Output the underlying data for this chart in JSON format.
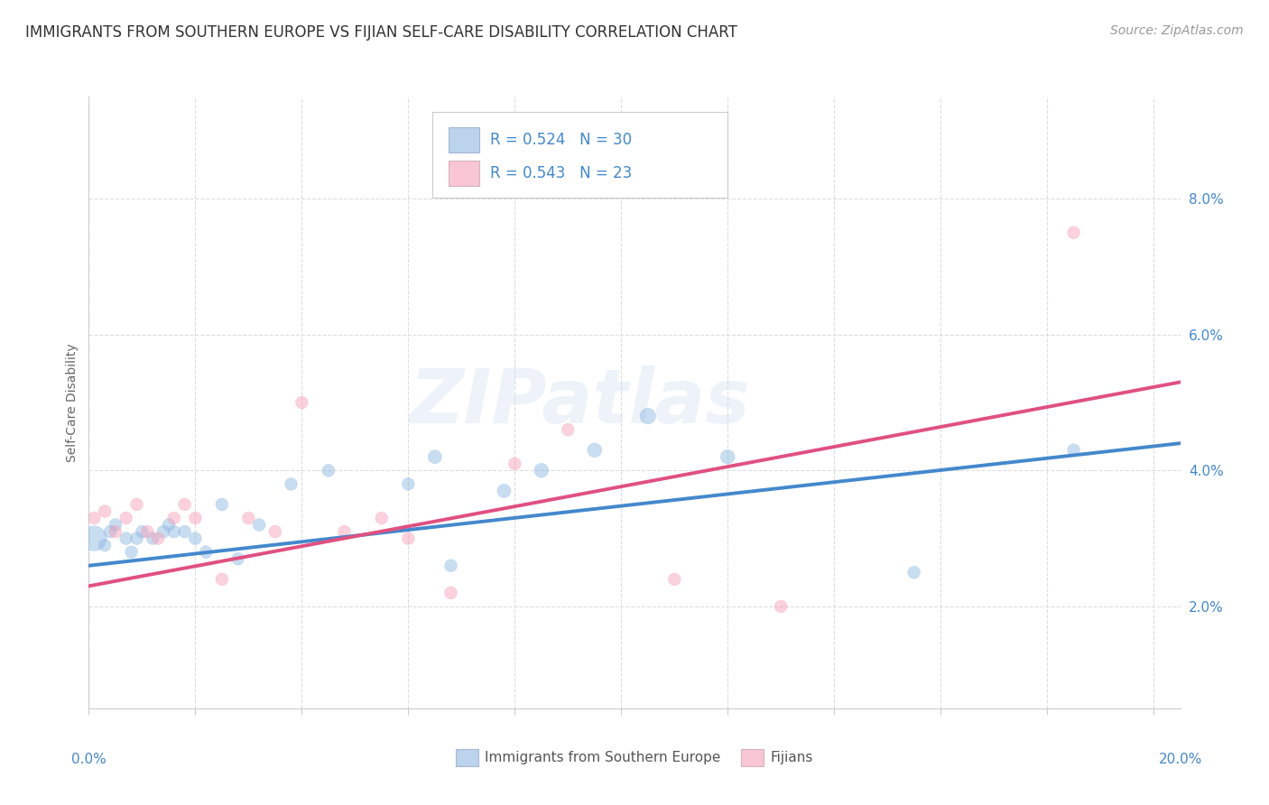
{
  "title": "IMMIGRANTS FROM SOUTHERN EUROPE VS FIJIAN SELF-CARE DISABILITY CORRELATION CHART",
  "source": "Source: ZipAtlas.com",
  "ylabel": "Self-Care Disability",
  "xlim": [
    0.0,
    0.205
  ],
  "ylim": [
    0.005,
    0.095
  ],
  "yticks": [
    0.02,
    0.04,
    0.06,
    0.08
  ],
  "ytick_labels": [
    "2.0%",
    "4.0%",
    "6.0%",
    "8.0%"
  ],
  "xtick_positions": [
    0.0,
    0.02,
    0.04,
    0.06,
    0.08,
    0.1,
    0.12,
    0.14,
    0.16,
    0.18,
    0.2
  ],
  "legend_entries": [
    {
      "label_r": "R = 0.524",
      "label_n": "N = 30"
    },
    {
      "label_r": "R = 0.543",
      "label_n": "N = 23"
    }
  ],
  "bottom_legend": [
    {
      "label": "Immigrants from Southern Europe"
    },
    {
      "label": "Fijians"
    }
  ],
  "blue_x": [
    0.001,
    0.003,
    0.004,
    0.005,
    0.007,
    0.008,
    0.009,
    0.01,
    0.012,
    0.014,
    0.015,
    0.016,
    0.018,
    0.02,
    0.022,
    0.025,
    0.028,
    0.032,
    0.038,
    0.045,
    0.06,
    0.065,
    0.068,
    0.078,
    0.085,
    0.095,
    0.105,
    0.12,
    0.155,
    0.185
  ],
  "blue_y": [
    0.03,
    0.029,
    0.031,
    0.032,
    0.03,
    0.028,
    0.03,
    0.031,
    0.03,
    0.031,
    0.032,
    0.031,
    0.031,
    0.03,
    0.028,
    0.035,
    0.027,
    0.032,
    0.038,
    0.04,
    0.038,
    0.042,
    0.026,
    0.037,
    0.04,
    0.043,
    0.048,
    0.042,
    0.025,
    0.043
  ],
  "blue_s": [
    400,
    100,
    100,
    100,
    100,
    100,
    100,
    100,
    100,
    100,
    100,
    100,
    100,
    100,
    100,
    100,
    100,
    100,
    100,
    100,
    100,
    120,
    100,
    120,
    130,
    130,
    160,
    130,
    100,
    100
  ],
  "pink_x": [
    0.001,
    0.003,
    0.005,
    0.007,
    0.009,
    0.011,
    0.013,
    0.016,
    0.018,
    0.02,
    0.025,
    0.03,
    0.035,
    0.04,
    0.048,
    0.055,
    0.06,
    0.068,
    0.08,
    0.09,
    0.11,
    0.13,
    0.185
  ],
  "pink_y": [
    0.033,
    0.034,
    0.031,
    0.033,
    0.035,
    0.031,
    0.03,
    0.033,
    0.035,
    0.033,
    0.024,
    0.033,
    0.031,
    0.05,
    0.031,
    0.033,
    0.03,
    0.022,
    0.041,
    0.046,
    0.024,
    0.02,
    0.075
  ],
  "pink_s": [
    100,
    100,
    100,
    100,
    100,
    100,
    100,
    100,
    100,
    100,
    100,
    100,
    100,
    100,
    100,
    100,
    100,
    100,
    100,
    100,
    100,
    100,
    100
  ],
  "blue_line_x": [
    0.0,
    0.205
  ],
  "blue_line_y": [
    0.026,
    0.044
  ],
  "pink_line_x": [
    0.0,
    0.205
  ],
  "pink_line_y": [
    0.023,
    0.053
  ],
  "blue_fill_color": "#aac8e8",
  "pink_fill_color": "#f8b8cc",
  "blue_scatter_color": "#88b4e0",
  "pink_scatter_color": "#f599b4",
  "blue_line_color": "#4488cc",
  "pink_line_color": "#e05080",
  "legend_text_color": "#4488cc",
  "tick_color": "#4488cc",
  "ylabel_color": "#666666",
  "grid_color": "#dddddd",
  "bg_color": "#ffffff",
  "title_color": "#333333",
  "source_color": "#999999",
  "watermark_text": "ZIPatlas",
  "title_fontsize": 12,
  "tick_fontsize": 11,
  "ylabel_fontsize": 10,
  "legend_fontsize": 12,
  "source_fontsize": 10
}
